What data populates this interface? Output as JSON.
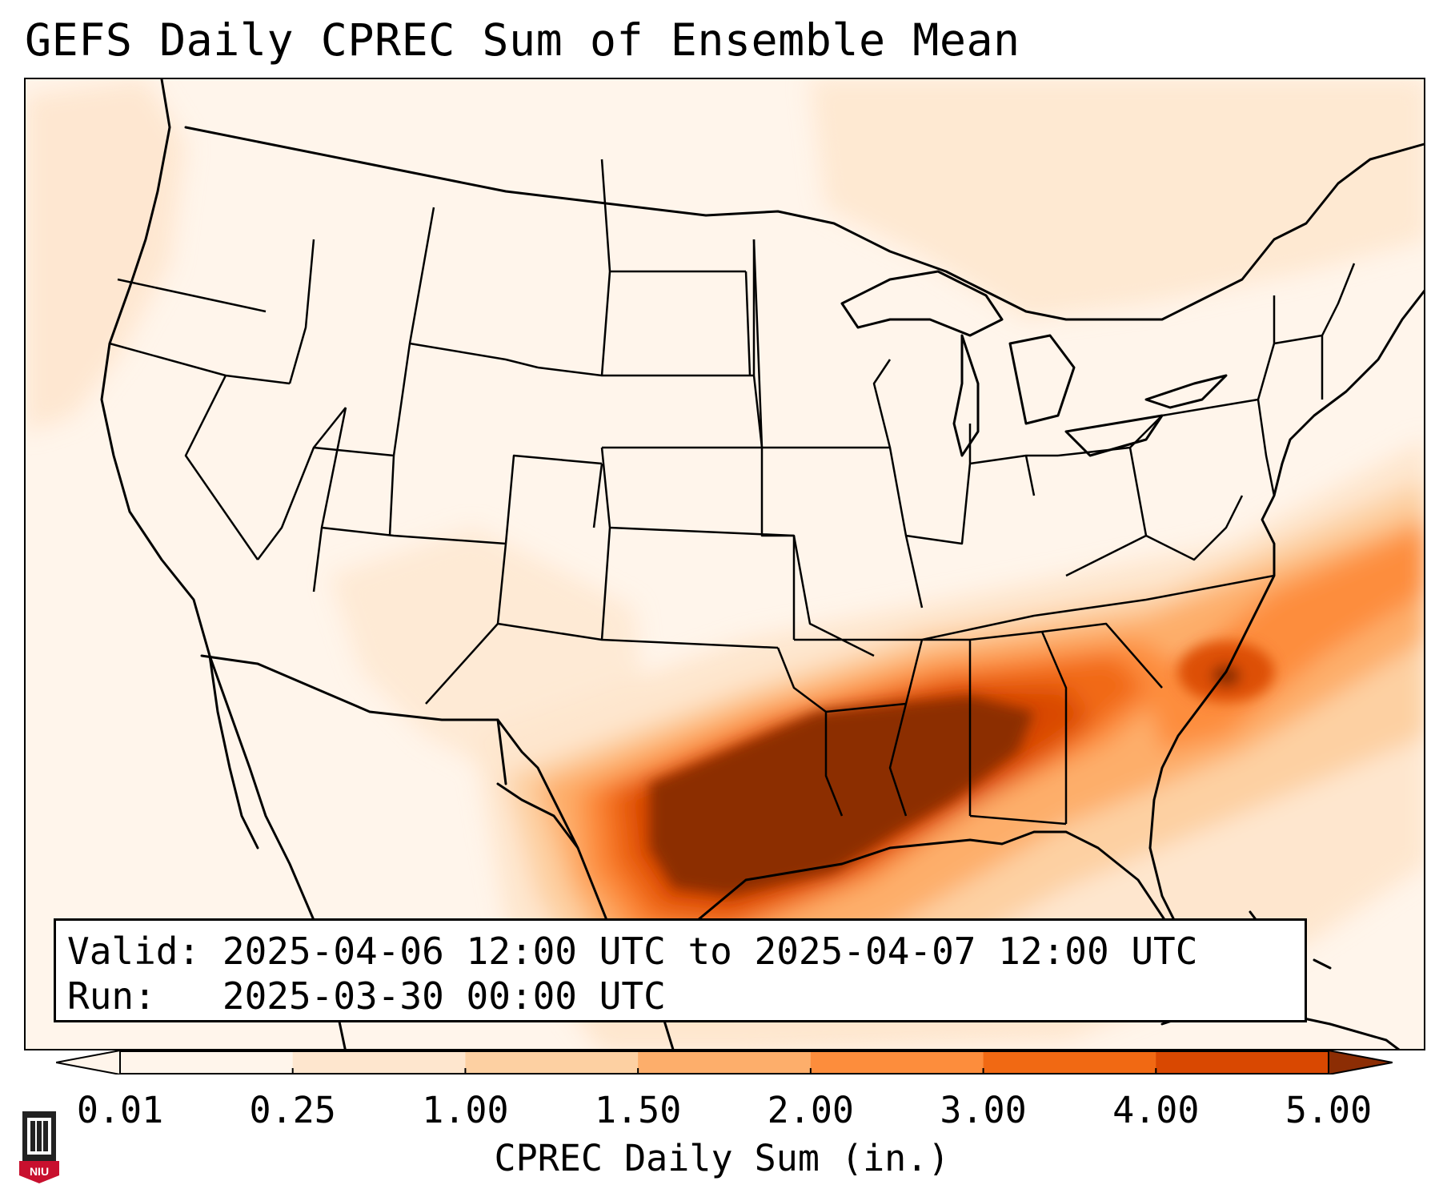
{
  "title": "GEFS Daily CPREC Sum of Ensemble Mean",
  "info": {
    "valid_label": "Valid:",
    "valid_value": "2025-04-06 12:00 UTC to 2025-04-07 12:00 UTC",
    "run_label": "Run:",
    "run_value": "2025-03-30 00:00 UTC"
  },
  "colorbar": {
    "label": "CPREC Daily Sum (in.)",
    "ticks": [
      "0.01",
      "0.25",
      "1.00",
      "1.50",
      "2.00",
      "3.00",
      "4.00",
      "5.00"
    ],
    "colors": [
      "#fff5eb",
      "#fee6ce",
      "#fdd0a2",
      "#fdae6b",
      "#fd8d3c",
      "#f16913",
      "#d94801",
      "#8c2d04"
    ],
    "extend": "both"
  },
  "map": {
    "projection": "Lambert Conformal",
    "region": "Continental United States",
    "max_color": "#8c2d04"
  },
  "logo": {
    "text": "NIU",
    "color": "#c8102e"
  }
}
